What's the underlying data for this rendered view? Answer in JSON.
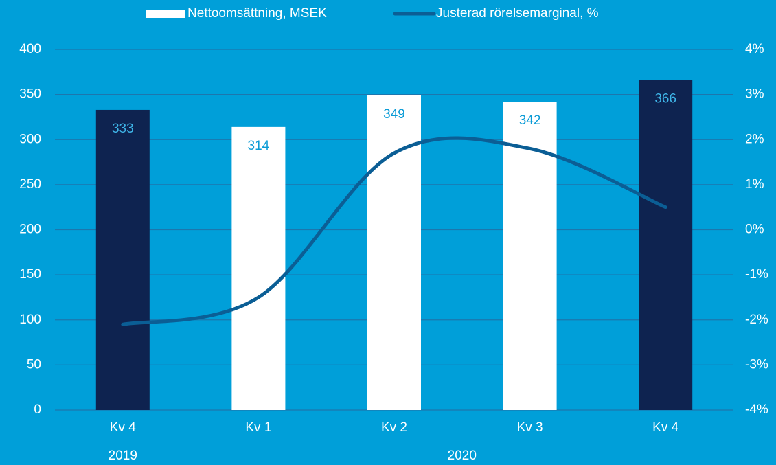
{
  "chart_data": {
    "type": "bar_line",
    "categories": [
      "Kv 4",
      "Kv 1",
      "Kv 2",
      "Kv 3",
      "Kv 4"
    ],
    "category_groups": [
      {
        "label": "2019",
        "span": 1
      },
      {
        "label": "2020",
        "span": 4
      }
    ],
    "series": [
      {
        "name": "Nettoomsättning, MSEK",
        "type": "bar",
        "color": "#ffffff",
        "colors": [
          "#0e2350",
          "#ffffff",
          "#ffffff",
          "#ffffff",
          "#0e2350"
        ],
        "label_colors": [
          "#3fb5e8",
          "#0a9bd6",
          "#0a9bd6",
          "#0a9bd6",
          "#3fb5e8"
        ],
        "values": [
          333,
          314,
          349,
          342,
          366
        ]
      },
      {
        "name": "Justerad rörelsemarginal, %",
        "type": "line",
        "axis": "y2",
        "color": "#0b5e95",
        "smooth": true,
        "values": [
          -2.1,
          -1.5,
          1.7,
          1.8,
          0.5
        ]
      }
    ],
    "ylim": [
      0,
      400
    ],
    "yticks": [
      0,
      50,
      100,
      150,
      200,
      250,
      300,
      350,
      400
    ],
    "y2lim": [
      -4,
      4
    ],
    "y2ticks": [
      {
        "value": -4,
        "label": "-4%"
      },
      {
        "value": -3,
        "label": "-3%"
      },
      {
        "value": -2,
        "label": "-2%"
      },
      {
        "value": -1,
        "label": "-1%"
      },
      {
        "value": 0,
        "label": "0%"
      },
      {
        "value": 1,
        "label": "1%"
      },
      {
        "value": 2,
        "label": "2%"
      },
      {
        "value": 3,
        "label": "3%"
      },
      {
        "value": 4,
        "label": "4%"
      }
    ],
    "grid": true,
    "legend": "top"
  }
}
